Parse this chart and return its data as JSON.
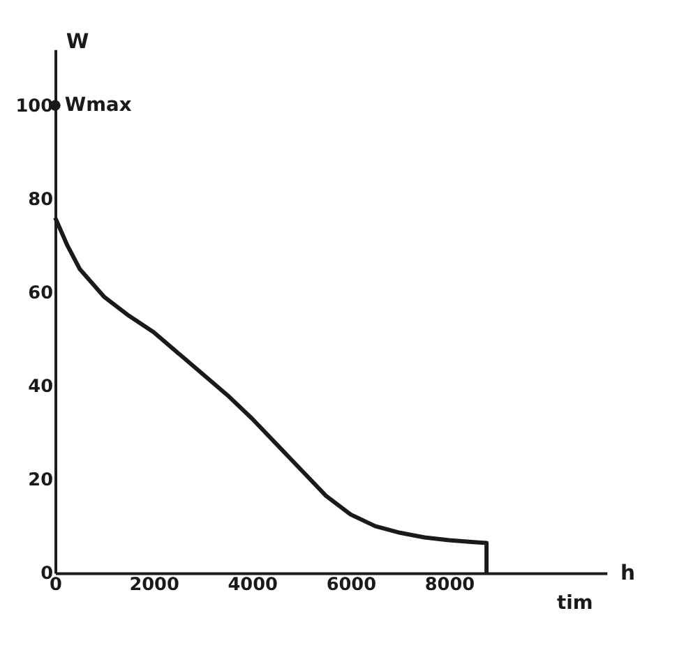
{
  "chart_data": {
    "type": "line",
    "xlabel": "tim",
    "ylabel": "W",
    "xlim": [
      0,
      11200
    ],
    "ylim": [
      0,
      112
    ],
    "xticks": [
      0,
      2000,
      4000,
      6000,
      8000
    ],
    "yticks": [
      0,
      20,
      40,
      60,
      80,
      100
    ],
    "grid": false,
    "marker": "none",
    "line_style": "solid",
    "series": [
      {
        "color": "#1a1a1a",
        "x": [
          0,
          250,
          500,
          1000,
          1500,
          2000,
          2500,
          3000,
          3500,
          4000,
          4500,
          5000,
          5500,
          6000,
          6500,
          7000,
          7500,
          8000,
          8500,
          8760,
          8760
        ],
        "values": [
          76,
          70,
          65,
          59,
          55,
          51.5,
          47,
          42.5,
          38,
          33,
          27.5,
          22,
          16.5,
          12.5,
          10,
          8.6,
          7.6,
          7,
          6.6,
          6.4,
          0
        ]
      },
      {
        "type": "scatter",
        "marker": "circle",
        "color": "#1a1a1a",
        "x": [
          0
        ],
        "values": [
          100
        ]
      }
    ],
    "annotations": [
      {
        "text": "Wmax",
        "x": 0,
        "y": 100
      },
      "h"
    ]
  }
}
